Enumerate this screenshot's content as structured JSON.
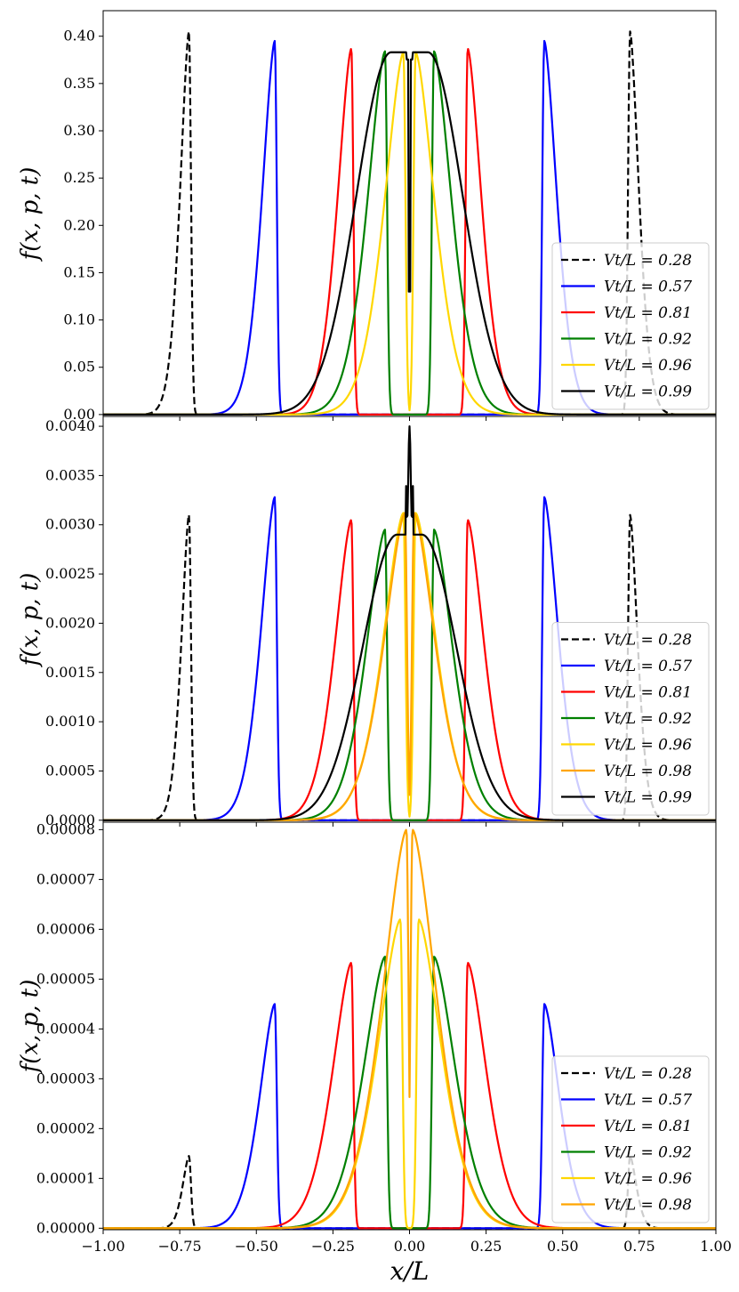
{
  "figure": {
    "xlabel": "x/L",
    "xlim": [
      -1.0,
      1.0
    ],
    "xticks": [
      "−1.00",
      "−0.75",
      "−0.50",
      "−0.25",
      "0.00",
      "0.25",
      "0.50",
      "0.75",
      "1.00"
    ],
    "xtick_values": [
      -1.0,
      -0.75,
      -0.5,
      -0.25,
      0.0,
      0.25,
      0.5,
      0.75,
      1.0
    ]
  },
  "chart_data": [
    {
      "type": "line",
      "panel": "top",
      "ylabel": "f(x, p, t)",
      "ylim": [
        -0.002,
        0.427
      ],
      "yticks": [
        "0.00",
        "0.05",
        "0.10",
        "0.15",
        "0.20",
        "0.25",
        "0.30",
        "0.35",
        "0.40"
      ],
      "ytick_values": [
        0.0,
        0.05,
        0.1,
        0.15,
        0.2,
        0.25,
        0.3,
        0.35,
        0.4
      ],
      "legend_position": "lower right",
      "series": [
        {
          "name": "Vt/L = 0.28",
          "color": "#000000",
          "dash": true,
          "peak": 0.405,
          "edge": 0.72,
          "flat": 0.0,
          "width": 0.07,
          "center_dip": false
        },
        {
          "name": "Vt/L = 0.57",
          "color": "#0000ff",
          "dash": false,
          "peak": 0.395,
          "edge": 0.44,
          "flat": 0.0,
          "width": 0.1,
          "center_dip": false
        },
        {
          "name": "Vt/L = 0.81",
          "color": "#ff0000",
          "dash": false,
          "peak": 0.387,
          "edge": 0.19,
          "flat": 0.0,
          "width": 0.11,
          "center_dip": false
        },
        {
          "name": "Vt/L = 0.92",
          "color": "#008000",
          "dash": false,
          "peak": 0.384,
          "edge": 0.08,
          "flat": 0.0,
          "width": 0.14,
          "center_dip": false
        },
        {
          "name": "Vt/L = 0.96",
          "color": "#ffd700",
          "dash": false,
          "peak": 0.383,
          "edge": 0.02,
          "flat": 0.0,
          "width": 0.15,
          "center_dip": false
        },
        {
          "name": "Vt/L = 0.99",
          "color": "#000000",
          "dash": false,
          "peak": 0.383,
          "edge": 0.0,
          "flat": 0.06,
          "width": 0.16,
          "center_dip": true,
          "dip_min": 0.13
        }
      ]
    },
    {
      "type": "line",
      "panel": "middle",
      "ylabel": "f(x, p, t)",
      "ylim": [
        -2e-05,
        0.0041
      ],
      "yticks": [
        "0.0000",
        "0.0005",
        "0.0010",
        "0.0015",
        "0.0020",
        "0.0025",
        "0.0030",
        "0.0035",
        "0.0040"
      ],
      "ytick_values": [
        0.0,
        0.0005,
        0.001,
        0.0015,
        0.002,
        0.0025,
        0.003,
        0.0035,
        0.004
      ],
      "legend_position": "lower right",
      "series": [
        {
          "name": "Vt/L = 0.28",
          "color": "#000000",
          "dash": true,
          "peak": 0.0031,
          "edge": 0.72,
          "flat": 0.0,
          "width": 0.06,
          "center_dip": false
        },
        {
          "name": "Vt/L = 0.57",
          "color": "#0000ff",
          "dash": false,
          "peak": 0.00328,
          "edge": 0.44,
          "flat": 0.0,
          "width": 0.11,
          "center_dip": false
        },
        {
          "name": "Vt/L = 0.81",
          "color": "#ff0000",
          "dash": false,
          "peak": 0.00305,
          "edge": 0.19,
          "flat": 0.0,
          "width": 0.13,
          "center_dip": false
        },
        {
          "name": "Vt/L = 0.92",
          "color": "#008000",
          "dash": false,
          "peak": 0.00295,
          "edge": 0.08,
          "flat": 0.0,
          "width": 0.15,
          "center_dip": false
        },
        {
          "name": "Vt/L = 0.96",
          "color": "#ffd700",
          "dash": false,
          "peak": 0.00312,
          "edge": 0.02,
          "flat": 0.0,
          "width": 0.16,
          "center_dip": false
        },
        {
          "name": "Vt/L = 0.98",
          "color": "#ffa500",
          "dash": false,
          "peak": 0.00312,
          "edge": 0.015,
          "flat": 0.0,
          "width": 0.165,
          "center_dip": false
        },
        {
          "name": "Vt/L = 0.99",
          "color": "#000000",
          "dash": false,
          "peak": 0.0029,
          "edge": 0.0,
          "flat": 0.04,
          "width": 0.16,
          "center_dip": false,
          "center_spike": 0.004
        }
      ]
    },
    {
      "type": "line",
      "panel": "bottom",
      "ylabel": "f(x, p, t)",
      "ylim": [
        -3e-07,
        8.15e-05
      ],
      "yticks": [
        "0.00000",
        "0.00001",
        "0.00002",
        "0.00003",
        "0.00004",
        "0.00005",
        "0.00006",
        "0.00007",
        "0.00008"
      ],
      "ytick_values": [
        0.0,
        1e-05,
        2e-05,
        3e-05,
        4e-05,
        5e-05,
        6e-05,
        7e-05,
        8e-05
      ],
      "legend_position": "lower right",
      "series": [
        {
          "name": "Vt/L = 0.28",
          "color": "#000000",
          "dash": true,
          "peak": 1.45e-05,
          "edge": 0.72,
          "flat": 0.0,
          "width": 0.05,
          "center_dip": false
        },
        {
          "name": "Vt/L = 0.57",
          "color": "#0000ff",
          "dash": false,
          "peak": 4.5e-05,
          "edge": 0.44,
          "flat": 0.0,
          "width": 0.12,
          "center_dip": false
        },
        {
          "name": "Vt/L = 0.81",
          "color": "#ff0000",
          "dash": false,
          "peak": 5.33e-05,
          "edge": 0.19,
          "flat": 0.0,
          "width": 0.15,
          "center_dip": false
        },
        {
          "name": "Vt/L = 0.92",
          "color": "#008000",
          "dash": false,
          "peak": 5.45e-05,
          "edge": 0.08,
          "flat": 0.0,
          "width": 0.17,
          "center_dip": false
        },
        {
          "name": "Vt/L = 0.96",
          "color": "#ffd700",
          "dash": false,
          "peak": 6.2e-05,
          "edge": 0.03,
          "flat": 0.0,
          "width": 0.18,
          "center_dip": false
        },
        {
          "name": "Vt/L = 0.98",
          "color": "#ffa500",
          "dash": false,
          "peak": 8e-05,
          "edge": 0.01,
          "flat": 0.0,
          "width": 0.19,
          "center_dip": false
        }
      ]
    }
  ]
}
